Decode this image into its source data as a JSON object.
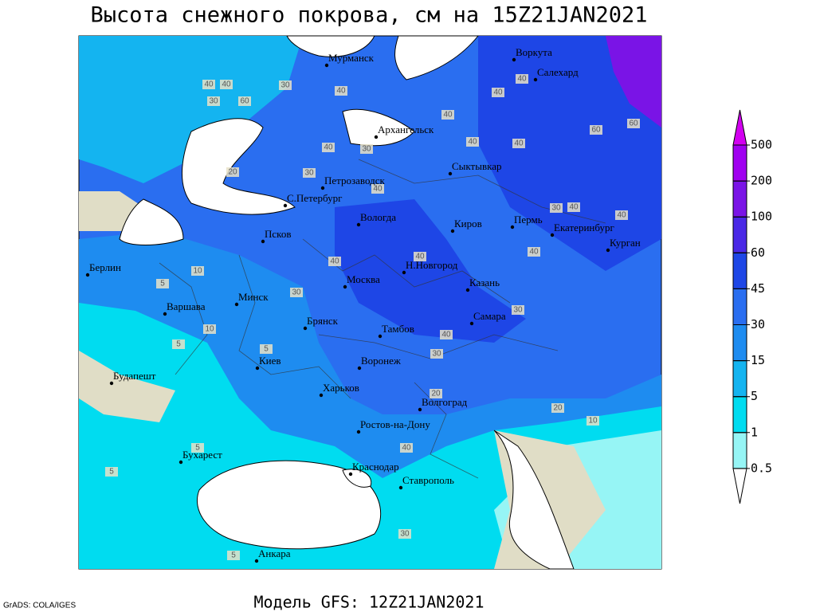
{
  "title": "Высота снежного покрова, см на 15Z21JAN2021",
  "footer": "Модель GFS: 12Z21JAN2021",
  "credit": "GrADS: COLA/IGES",
  "legend": {
    "levels": [
      0.5,
      1,
      5,
      15,
      30,
      45,
      60,
      100,
      200,
      500
    ],
    "colors": [
      "#ffffff",
      "#96f5f5",
      "#00dcf0",
      "#14b4f0",
      "#1e8cf0",
      "#2a6ef0",
      "#1e46e6",
      "#4a28e6",
      "#7a14e6",
      "#a000f0",
      "#d200f0"
    ]
  },
  "cities": [
    "Мурманск",
    "Воркута",
    "Салехард",
    "Архангельск",
    "Петрозаводск",
    "С.Петербург",
    "Сыктывкар",
    "Вологда",
    "Псков",
    "Киров",
    "Пермь",
    "Екатеринбург",
    "Курган",
    "Берлин",
    "Москва",
    "Н.Новгород",
    "Казань",
    "Минск",
    "Варшава",
    "Брянск",
    "Самара",
    "Тамбов",
    "Киев",
    "Воронеж",
    "Будапешт",
    "Харьков",
    "Волгоград",
    "Ростов-на-Дону",
    "Бухарест",
    "Краснодар",
    "Ставрополь",
    "Анкара"
  ],
  "contour_labels": [
    40,
    40,
    30,
    40,
    60,
    30,
    40,
    40,
    40,
    60,
    60,
    30,
    40,
    40,
    20,
    30,
    40,
    40,
    30,
    40,
    40,
    40,
    10,
    5,
    30,
    40,
    40,
    30,
    40,
    10,
    5,
    30,
    20,
    20,
    5,
    10,
    5,
    5,
    40,
    30,
    5
  ]
}
